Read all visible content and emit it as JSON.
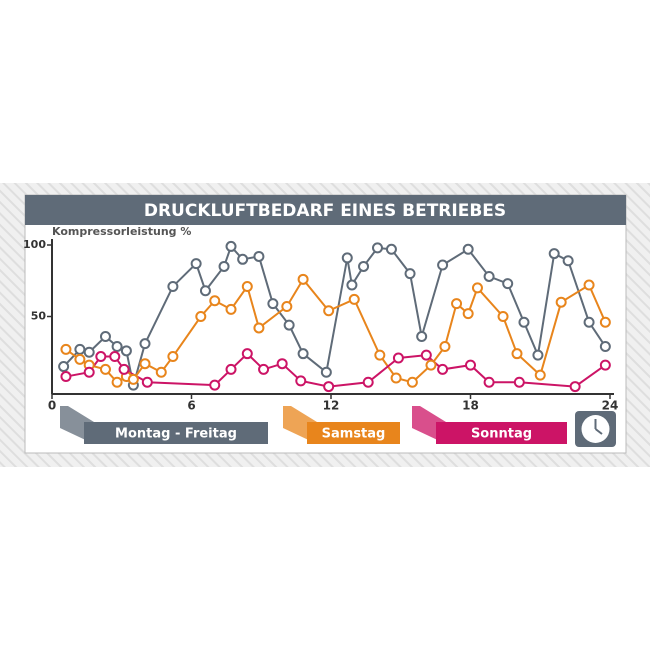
{
  "chart_data": {
    "type": "line",
    "title": "DRUCKLUFTBEDARF EINES BETRIEBES",
    "y_label": "Kompressorleistung %",
    "xlim": [
      0,
      24
    ],
    "xticks": [
      0,
      6,
      12,
      18,
      24
    ],
    "ylim": [
      0,
      100
    ],
    "yticks": [
      50,
      100
    ],
    "series": [
      {
        "name": "Montag - Freitag",
        "color": "#5f6b78",
        "x": [
          0.5,
          1.2,
          1.6,
          2.3,
          2.8,
          3.2,
          3.5,
          4.0,
          5.2,
          6.2,
          6.6,
          7.4,
          7.7,
          8.2,
          8.9,
          9.5,
          10.2,
          10.8,
          11.8,
          12.7,
          12.9,
          13.4,
          14.0,
          14.6,
          15.4,
          15.9,
          16.8,
          17.9,
          18.8,
          19.6,
          20.3,
          20.9,
          21.6,
          22.2,
          23.1,
          23.8
        ],
        "values": [
          15,
          27,
          25,
          36,
          29,
          26,
          2,
          31,
          71,
          87,
          68,
          85,
          99,
          90,
          92,
          59,
          44,
          24,
          11,
          91,
          72,
          85,
          98,
          97,
          80,
          36,
          86,
          97,
          78,
          73,
          46,
          23,
          94,
          89,
          46,
          29
        ]
      },
      {
        "name": "Samstag",
        "color": "#e8851c",
        "x": [
          0.6,
          1.2,
          1.6,
          2.3,
          2.8,
          3.2,
          3.5,
          4.0,
          4.7,
          5.2,
          6.4,
          7.0,
          7.7,
          8.4,
          8.9,
          10.1,
          10.8,
          11.9,
          13.0,
          14.1,
          14.8,
          15.5,
          16.3,
          16.9,
          17.4,
          17.9,
          18.3,
          19.4,
          20.0,
          21.0,
          21.9,
          23.1,
          23.8
        ],
        "values": [
          27,
          20,
          16,
          13,
          4,
          8,
          6,
          17,
          11,
          22,
          50,
          61,
          55,
          71,
          42,
          57,
          76,
          54,
          62,
          23,
          7,
          4,
          16,
          29,
          59,
          52,
          70,
          50,
          24,
          9,
          60,
          72,
          46
        ]
      },
      {
        "name": "Sonntag",
        "color": "#cc1466",
        "x": [
          0.6,
          1.6,
          2.1,
          2.7,
          3.1,
          4.1,
          7.0,
          7.7,
          8.4,
          9.1,
          9.9,
          10.7,
          11.9,
          13.6,
          14.9,
          16.1,
          16.8,
          18.0,
          18.8,
          20.1,
          22.5,
          23.8
        ],
        "values": [
          8,
          11,
          22,
          22,
          13,
          4,
          2,
          13,
          24,
          13,
          17,
          5,
          1,
          4,
          21,
          23,
          13,
          16,
          4,
          4,
          1,
          16
        ]
      }
    ]
  }
}
